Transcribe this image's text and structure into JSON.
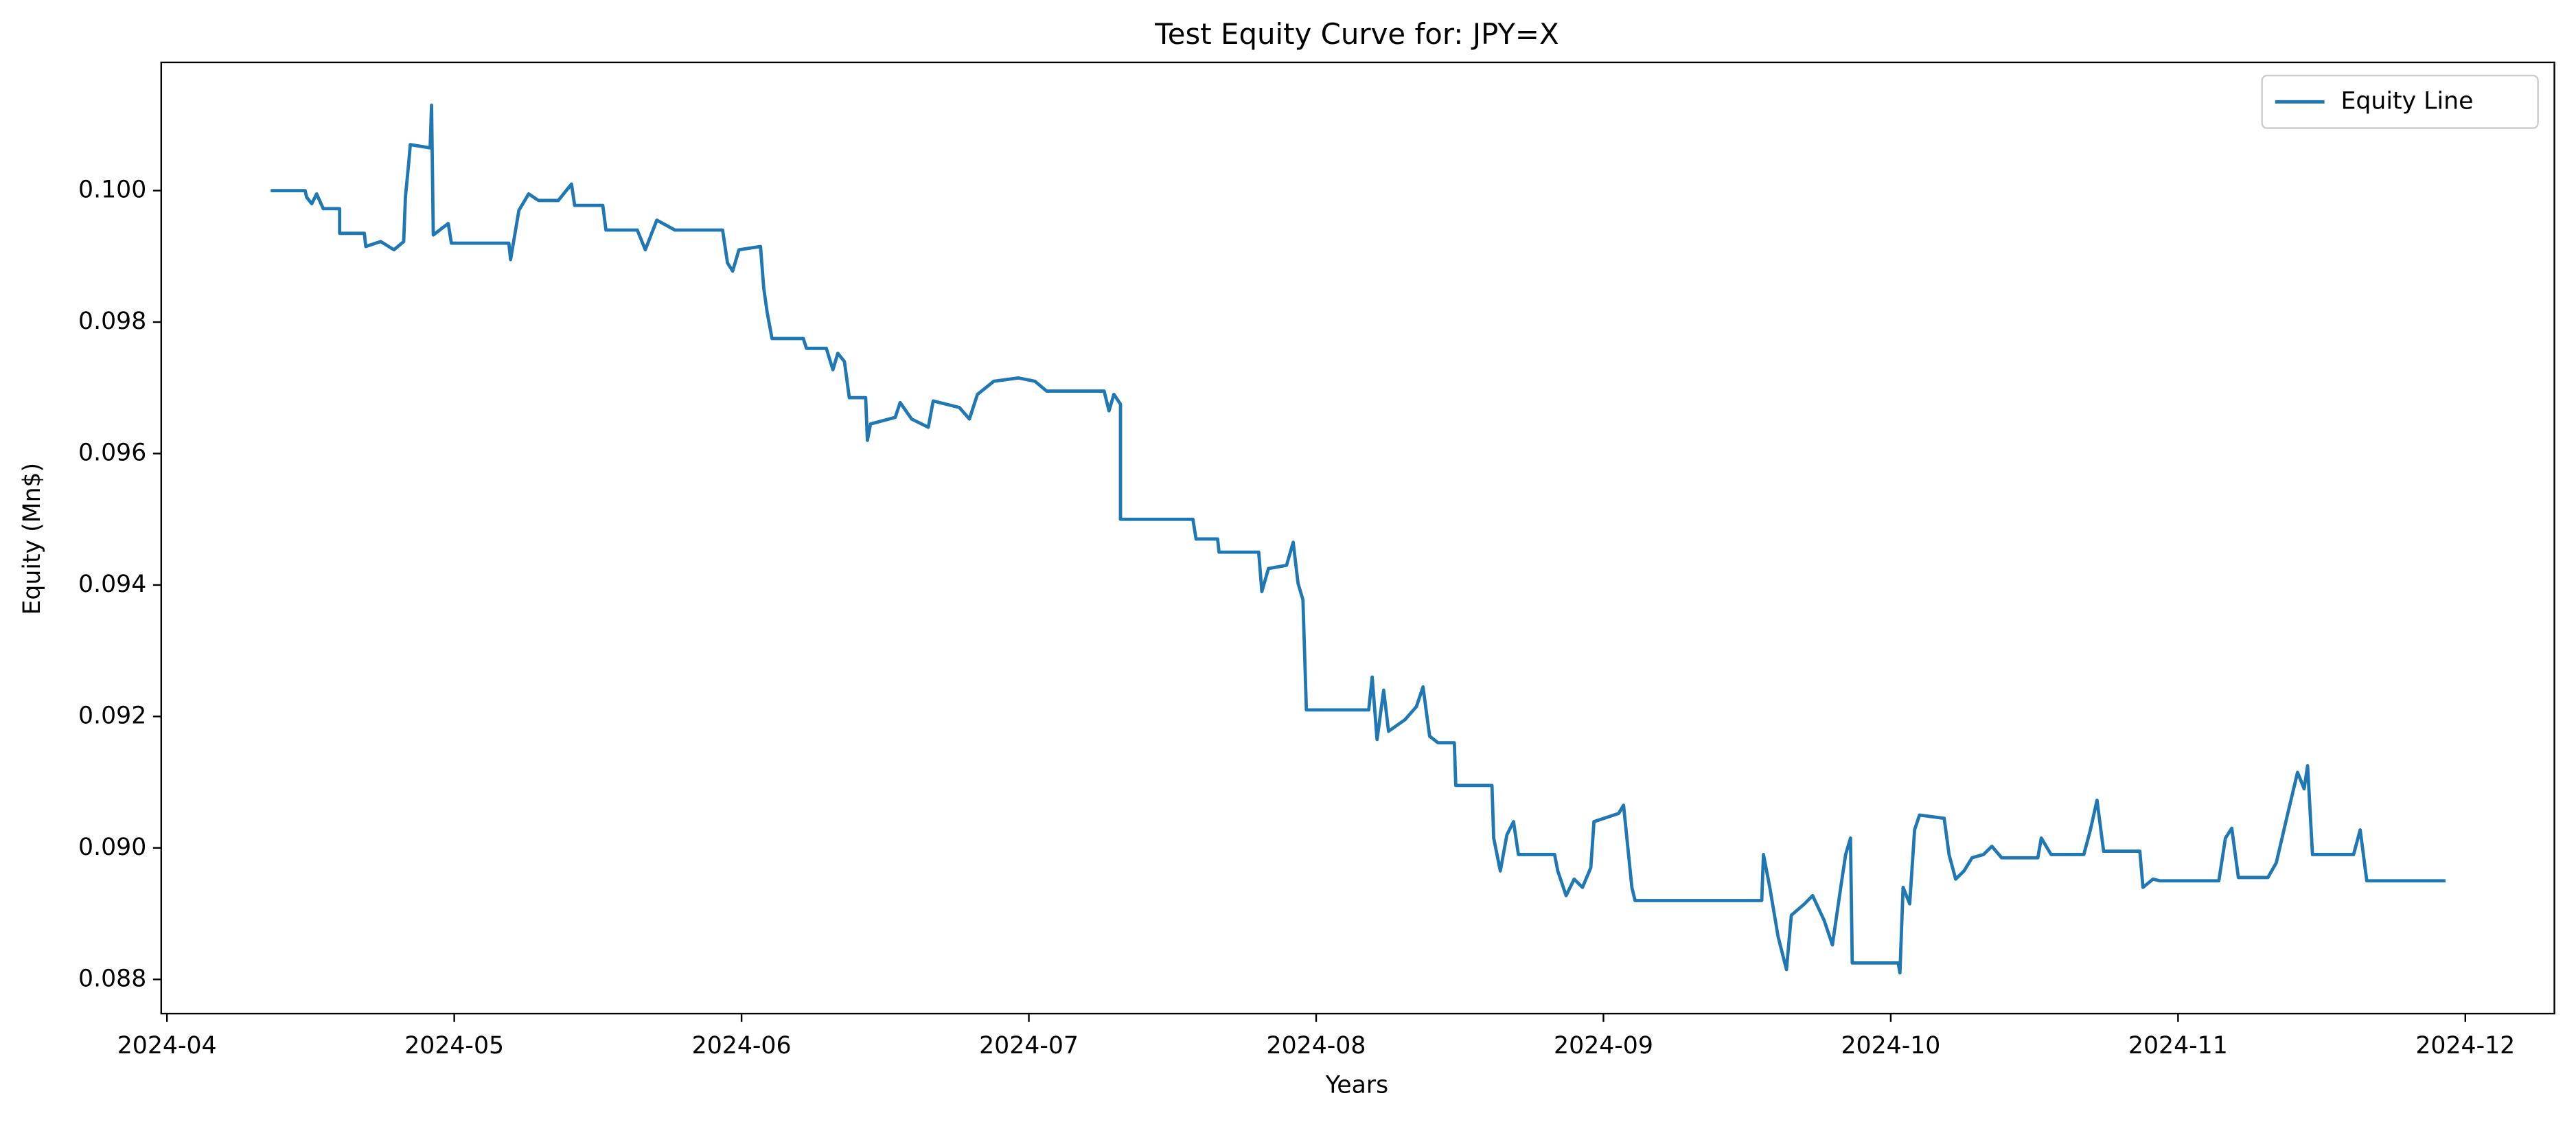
{
  "chart_data": {
    "type": "line",
    "title": "Test Equity Curve for: JPY=X",
    "xlabel": "Years",
    "ylabel": "Equity (Mn$)",
    "legend": "upper right",
    "grid": false,
    "xlim": [
      3.98,
      12.31
    ],
    "xticks": [
      {
        "value": 4,
        "label": "2024-04"
      },
      {
        "value": 5,
        "label": "2024-05"
      },
      {
        "value": 6,
        "label": "2024-06"
      },
      {
        "value": 7,
        "label": "2024-07"
      },
      {
        "value": 8,
        "label": "2024-08"
      },
      {
        "value": 9,
        "label": "2024-09"
      },
      {
        "value": 10,
        "label": "2024-10"
      },
      {
        "value": 11,
        "label": "2024-11"
      },
      {
        "value": 12,
        "label": "2024-12"
      }
    ],
    "ylim": [
      0.08748,
      0.10195
    ],
    "yticks": [
      {
        "value": 0.088,
        "label": "0.088"
      },
      {
        "value": 0.09,
        "label": "0.090"
      },
      {
        "value": 0.092,
        "label": "0.092"
      },
      {
        "value": 0.094,
        "label": "0.094"
      },
      {
        "value": 0.096,
        "label": "0.096"
      },
      {
        "value": 0.098,
        "label": "0.098"
      },
      {
        "value": 0.1,
        "label": "0.100"
      }
    ],
    "x": [
      4.361,
      4.481,
      4.486,
      4.504,
      4.521,
      4.544,
      4.601,
      4.601,
      4.687,
      4.692,
      4.744,
      4.79,
      4.824,
      4.83,
      4.841,
      4.847,
      4.916,
      4.921,
      4.927,
      4.979,
      4.99,
      5.19,
      5.196,
      5.225,
      5.259,
      5.293,
      5.362,
      5.408,
      5.419,
      5.517,
      5.528,
      5.637,
      5.665,
      5.705,
      5.768,
      5.934,
      5.951,
      5.969,
      5.991,
      6.066,
      6.077,
      6.089,
      6.106,
      6.215,
      6.226,
      6.295,
      6.318,
      6.335,
      6.358,
      6.375,
      6.432,
      6.438,
      6.449,
      6.535,
      6.552,
      6.592,
      6.65,
      6.667,
      6.758,
      6.793,
      6.821,
      6.878,
      6.964,
      7.021,
      7.062,
      7.262,
      7.279,
      7.296,
      7.319,
      7.319,
      7.571,
      7.582,
      7.657,
      7.662,
      7.8,
      7.811,
      7.834,
      7.897,
      7.92,
      7.937,
      7.954,
      7.966,
      8.183,
      8.195,
      8.212,
      8.235,
      8.252,
      8.309,
      8.349,
      8.372,
      8.395,
      8.424,
      8.481,
      8.486,
      8.612,
      8.618,
      8.641,
      8.664,
      8.687,
      8.704,
      8.83,
      8.841,
      8.87,
      8.898,
      8.927,
      8.956,
      8.967,
      9.053,
      9.07,
      9.099,
      9.11,
      9.551,
      9.557,
      9.579,
      9.608,
      9.637,
      9.654,
      9.7,
      9.728,
      9.768,
      9.797,
      9.826,
      9.843,
      9.86,
      9.866,
      10.026,
      10.032,
      10.043,
      10.066,
      10.083,
      10.1,
      10.186,
      10.203,
      10.226,
      10.255,
      10.283,
      10.323,
      10.352,
      10.386,
      10.512,
      10.524,
      10.558,
      10.672,
      10.695,
      10.718,
      10.741,
      10.867,
      10.878,
      10.913,
      10.936,
      11.142,
      11.165,
      11.187,
      11.21,
      11.313,
      11.342,
      11.382,
      11.416,
      11.439,
      11.451,
      11.468,
      11.611,
      11.634,
      11.657,
      11.931
    ],
    "series": [
      {
        "name": "Equity Line",
        "color": "#1f77b4",
        "values": [
          0.1,
          0.1,
          0.0999,
          0.0998,
          0.09995,
          0.099725,
          0.099725,
          0.09935,
          0.09935,
          0.09915,
          0.099225,
          0.0991,
          0.099225,
          0.0999,
          0.1004,
          0.1007,
          0.10065,
          0.1013,
          0.099325,
          0.0995,
          0.0992,
          0.0992,
          0.09895,
          0.0997,
          0.09995,
          0.09985,
          0.09985,
          0.1001,
          0.099775,
          0.099775,
          0.0994,
          0.0994,
          0.0991,
          0.09955,
          0.0994,
          0.0994,
          0.0989,
          0.098775,
          0.0991,
          0.09915,
          0.098525,
          0.09815,
          0.09775,
          0.09775,
          0.0976,
          0.0976,
          0.097275,
          0.097525,
          0.0974,
          0.09685,
          0.09685,
          0.0962,
          0.09645,
          0.09655,
          0.096775,
          0.096525,
          0.0964,
          0.0968,
          0.0967,
          0.096525,
          0.0969,
          0.0971,
          0.09715,
          0.0971,
          0.09695,
          0.09695,
          0.09665,
          0.0969,
          0.09675,
          0.095,
          0.095,
          0.0947,
          0.0947,
          0.0945,
          0.0945,
          0.0939,
          0.09425,
          0.0943,
          0.09465,
          0.094025,
          0.093775,
          0.0921,
          0.0921,
          0.0926,
          0.09165,
          0.0924,
          0.091775,
          0.09195,
          0.09215,
          0.09245,
          0.0917,
          0.0916,
          0.0916,
          0.09095,
          0.09095,
          0.09015,
          0.08965,
          0.0902,
          0.0904,
          0.0899,
          0.0899,
          0.08965,
          0.089275,
          0.089525,
          0.0894,
          0.0897,
          0.0904,
          0.090525,
          0.09065,
          0.0894,
          0.0892,
          0.0892,
          0.0899,
          0.0894,
          0.08865,
          0.08815,
          0.088975,
          0.08915,
          0.089275,
          0.0889,
          0.088525,
          0.0894,
          0.0899,
          0.09015,
          0.08825,
          0.08825,
          0.0881,
          0.0894,
          0.08915,
          0.090275,
          0.0905,
          0.09045,
          0.0899,
          0.089525,
          0.08965,
          0.08985,
          0.0899,
          0.090025,
          0.08985,
          0.08985,
          0.09015,
          0.0899,
          0.0899,
          0.090275,
          0.090725,
          0.08995,
          0.08995,
          0.0894,
          0.089525,
          0.0895,
          0.0895,
          0.09015,
          0.0903,
          0.08955,
          0.08955,
          0.089775,
          0.090525,
          0.09115,
          0.0909,
          0.09125,
          0.0899,
          0.0899,
          0.090275,
          0.0895,
          0.0895
        ]
      }
    ]
  }
}
